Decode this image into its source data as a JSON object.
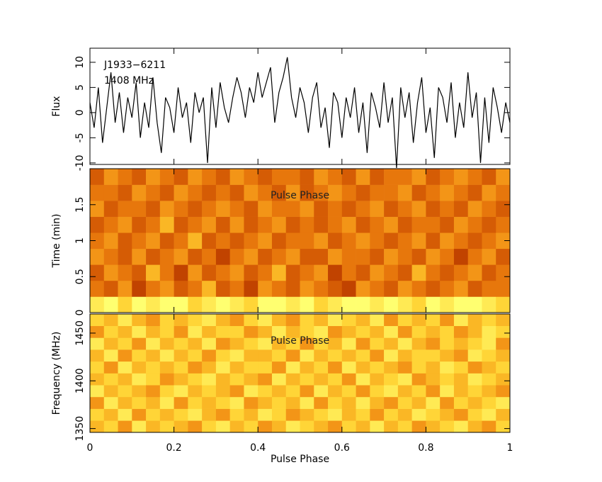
{
  "chart_data": [
    {
      "type": "line",
      "title": "J1933−6211",
      "subtitle": "1408 MHz",
      "ylabel": "Flux",
      "color": "#000000",
      "x": [
        0,
        0.01,
        0.02,
        0.03,
        0.04,
        0.05,
        0.06,
        0.07,
        0.08,
        0.09,
        0.1,
        0.11,
        0.12,
        0.13,
        0.14,
        0.15,
        0.16,
        0.17,
        0.18,
        0.19,
        0.2,
        0.21,
        0.22,
        0.23,
        0.24,
        0.25,
        0.26,
        0.27,
        0.28,
        0.29,
        0.3,
        0.31,
        0.32,
        0.33,
        0.34,
        0.35,
        0.36,
        0.37,
        0.38,
        0.39,
        0.4,
        0.41,
        0.42,
        0.43,
        0.44,
        0.45,
        0.46,
        0.47,
        0.48,
        0.49,
        0.5,
        0.51,
        0.52,
        0.53,
        0.54,
        0.55,
        0.56,
        0.57,
        0.58,
        0.59,
        0.6,
        0.61,
        0.62,
        0.63,
        0.64,
        0.65,
        0.66,
        0.67,
        0.68,
        0.69,
        0.7,
        0.71,
        0.72,
        0.73,
        0.74,
        0.75,
        0.76,
        0.77,
        0.78,
        0.79,
        0.8,
        0.81,
        0.82,
        0.83,
        0.84,
        0.85,
        0.86,
        0.87,
        0.88,
        0.89,
        0.9,
        0.91,
        0.92,
        0.93,
        0.94,
        0.95,
        0.96,
        0.97,
        0.98,
        0.99,
        1
      ],
      "values": [
        2,
        -3,
        5,
        -6,
        1,
        8,
        -2,
        4,
        -4,
        3,
        -1,
        6,
        -5,
        2,
        -3,
        7,
        -2,
        -8,
        3,
        1,
        -4,
        5,
        -1,
        2,
        -6,
        4,
        0,
        3,
        -10,
        5,
        -3,
        6,
        1,
        -2,
        3,
        7,
        4,
        -1,
        5,
        2,
        8,
        3,
        6,
        9,
        -2,
        4,
        7,
        11,
        3,
        -1,
        5,
        2,
        -4,
        3,
        6,
        -3,
        1,
        -7,
        4,
        2,
        -5,
        3,
        -1,
        5,
        -4,
        2,
        -8,
        4,
        1,
        -3,
        6,
        -2,
        3,
        -11,
        5,
        -1,
        4,
        -6,
        2,
        7,
        -4,
        1,
        -9,
        5,
        3,
        -2,
        6,
        -5,
        2,
        -3,
        8,
        -1,
        4,
        -10,
        3,
        -6,
        5,
        1,
        -4,
        2,
        -2
      ],
      "xlim": [
        0,
        1
      ],
      "xticks": [
        0,
        0.2,
        0.4,
        0.6,
        0.8,
        1
      ],
      "ylim": [
        -10.3,
        12.8
      ],
      "yticks": [
        -10,
        -5,
        0,
        5,
        10
      ]
    },
    {
      "type": "heatmap",
      "ylabel": "Time (min)",
      "annotation": "Pulse Phase",
      "xlim": [
        0,
        1
      ],
      "xticks": [
        0,
        0.2,
        0.4,
        0.6,
        0.8,
        1
      ],
      "ylim": [
        0,
        2
      ],
      "yticks": [
        0,
        0.5,
        1,
        1.5
      ],
      "zlim": [
        0,
        9
      ],
      "colormap": [
        "#8a1e00",
        "#c84800",
        "#f08410",
        "#ffd030",
        "#ffff70"
      ],
      "z": [
        [
          8,
          9,
          7,
          9,
          8,
          9,
          9,
          7,
          8,
          9,
          8,
          7,
          9,
          9,
          8,
          9,
          7,
          8,
          9,
          9,
          8,
          9,
          8,
          7,
          9,
          8,
          9,
          9,
          8,
          7
        ],
        [
          4,
          3,
          5,
          2,
          4,
          5,
          3,
          4,
          6,
          3,
          4,
          2,
          5,
          4,
          3,
          5,
          4,
          3,
          2,
          5,
          4,
          3,
          5,
          4,
          3,
          4,
          5,
          3,
          4,
          4
        ],
        [
          3,
          5,
          4,
          3,
          6,
          4,
          2,
          5,
          3,
          4,
          5,
          3,
          4,
          6,
          3,
          4,
          5,
          2,
          4,
          3,
          5,
          4,
          3,
          6,
          4,
          3,
          4,
          5,
          3,
          4
        ],
        [
          5,
          4,
          3,
          5,
          3,
          4,
          5,
          3,
          4,
          2,
          4,
          5,
          3,
          4,
          5,
          3,
          3,
          5,
          4,
          4,
          3,
          5,
          4,
          3,
          5,
          4,
          2,
          4,
          5,
          3
        ],
        [
          4,
          5,
          3,
          4,
          5,
          3,
          4,
          6,
          3,
          4,
          3,
          4,
          5,
          3,
          4,
          4,
          5,
          3,
          4,
          5,
          4,
          3,
          4,
          5,
          3,
          5,
          4,
          3,
          4,
          5
        ],
        [
          3,
          4,
          5,
          3,
          4,
          6,
          3,
          4,
          5,
          3,
          5,
          3,
          4,
          5,
          3,
          4,
          3,
          4,
          5,
          3,
          4,
          5,
          3,
          4,
          4,
          3,
          5,
          4,
          3,
          4
        ],
        [
          5,
          3,
          4,
          4,
          3,
          5,
          4,
          3,
          4,
          5,
          4,
          3,
          5,
          4,
          4,
          5,
          3,
          4,
          3,
          4,
          5,
          3,
          4,
          5,
          3,
          4,
          3,
          5,
          4,
          3
        ],
        [
          4,
          4,
          3,
          5,
          4,
          3,
          5,
          4,
          3,
          4,
          3,
          5,
          4,
          3,
          5,
          3,
          4,
          5,
          4,
          3,
          4,
          4,
          5,
          3,
          4,
          5,
          4,
          3,
          5,
          4
        ],
        [
          3,
          5,
          4,
          3,
          5,
          4,
          3,
          5,
          4,
          3,
          5,
          4,
          3,
          4,
          4,
          3,
          5,
          4,
          3,
          5,
          3,
          4,
          4,
          5,
          3,
          4,
          5,
          4,
          3,
          5
        ]
      ]
    },
    {
      "type": "heatmap",
      "ylabel": "Frequency (MHz)",
      "xlabel": "Pulse Phase",
      "annotation": "Pulse Phase",
      "xlim": [
        0,
        1
      ],
      "xticks": [
        0,
        0.2,
        0.4,
        0.6,
        0.8,
        1
      ],
      "ylim": [
        1346,
        1470
      ],
      "yticks": [
        1350,
        1400,
        1450
      ],
      "zlim": [
        0,
        9
      ],
      "colormap": [
        "#8a1e00",
        "#c84800",
        "#f08410",
        "#ffd030",
        "#ffff70"
      ],
      "z": [
        [
          6,
          7,
          5,
          8,
          6,
          7,
          6,
          5,
          7,
          8,
          6,
          7,
          5,
          6,
          8,
          7,
          6,
          5,
          7,
          6,
          8,
          6,
          7,
          5,
          6,
          7,
          8,
          6,
          5,
          7
        ],
        [
          7,
          6,
          8,
          5,
          7,
          6,
          7,
          8,
          6,
          5,
          7,
          6,
          8,
          7,
          5,
          6,
          7,
          8,
          6,
          7,
          5,
          7,
          6,
          8,
          7,
          6,
          5,
          7,
          8,
          6
        ],
        [
          5,
          8,
          6,
          7,
          6,
          8,
          5,
          7,
          6,
          7,
          8,
          5,
          6,
          7,
          6,
          8,
          5,
          7,
          6,
          8,
          6,
          5,
          7,
          6,
          8,
          5,
          7,
          6,
          7,
          8
        ],
        [
          8,
          6,
          7,
          6,
          5,
          7,
          8,
          6,
          7,
          6,
          5,
          8,
          7,
          6,
          7,
          5,
          8,
          6,
          7,
          5,
          7,
          8,
          6,
          7,
          5,
          8,
          6,
          7,
          6,
          5
        ],
        [
          6,
          7,
          6,
          8,
          7,
          5,
          6,
          7,
          8,
          6,
          7,
          6,
          5,
          8,
          6,
          7,
          6,
          7,
          5,
          8,
          6,
          7,
          8,
          5,
          6,
          7,
          6,
          8,
          7,
          6
        ],
        [
          7,
          5,
          8,
          6,
          7,
          6,
          7,
          5,
          6,
          8,
          6,
          7,
          7,
          5,
          8,
          6,
          7,
          5,
          8,
          6,
          7,
          6,
          5,
          7,
          6,
          8,
          7,
          5,
          6,
          7
        ],
        [
          6,
          8,
          5,
          7,
          6,
          8,
          6,
          7,
          5,
          7,
          8,
          6,
          6,
          7,
          5,
          8,
          6,
          7,
          6,
          7,
          5,
          8,
          6,
          7,
          7,
          6,
          5,
          8,
          7,
          6
        ],
        [
          8,
          6,
          7,
          5,
          8,
          6,
          7,
          6,
          8,
          5,
          6,
          7,
          8,
          6,
          7,
          5,
          7,
          6,
          8,
          5,
          7,
          6,
          8,
          6,
          5,
          7,
          6,
          7,
          8,
          5
        ],
        [
          5,
          7,
          6,
          8,
          6,
          7,
          5,
          8,
          6,
          7,
          7,
          5,
          6,
          8,
          6,
          7,
          8,
          5,
          6,
          7,
          6,
          8,
          5,
          7,
          6,
          7,
          5,
          6,
          8,
          7
        ],
        [
          7,
          6,
          8,
          6,
          5,
          7,
          6,
          7,
          8,
          6,
          5,
          7,
          8,
          6,
          5,
          7,
          6,
          8,
          7,
          6,
          8,
          5,
          7,
          6,
          7,
          5,
          8,
          6,
          7,
          6
        ]
      ]
    }
  ]
}
